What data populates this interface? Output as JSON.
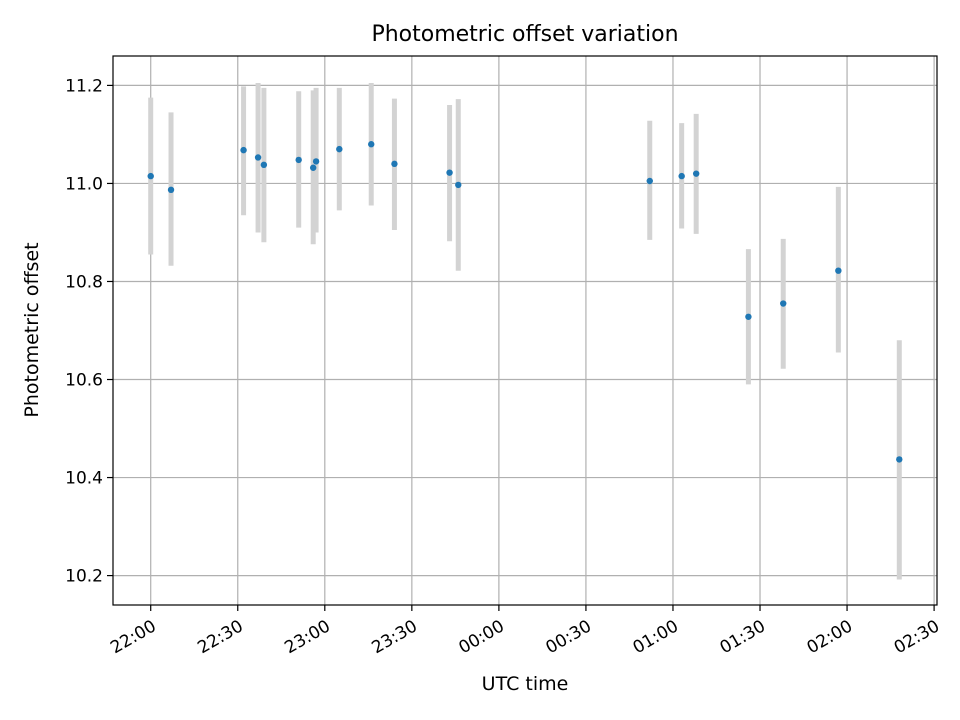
{
  "chart_data": {
    "type": "scatter",
    "title": "Photometric offset variation",
    "xlabel": "UTC time",
    "ylabel": "Photometric offset",
    "x_tick_labels": [
      "22:00",
      "22:30",
      "23:00",
      "23:30",
      "00:00",
      "00:30",
      "01:00",
      "01:30",
      "02:00",
      "02:30"
    ],
    "y_tick_labels": [
      "10.2",
      "10.4",
      "10.6",
      "10.8",
      "11.0",
      "11.2"
    ],
    "y_ticks": [
      10.2,
      10.4,
      10.6,
      10.8,
      11.0,
      11.2
    ],
    "ylim": [
      10.14,
      11.26
    ],
    "xlim": [
      "21:47",
      "02:31"
    ],
    "grid": true,
    "marker_color": "#1f77b4",
    "errorbar_color": "#d3d3d3",
    "points": [
      {
        "time": "22:00",
        "y": 11.015,
        "ylow": 10.855,
        "yhigh": 11.175
      },
      {
        "time": "22:07",
        "y": 10.987,
        "ylow": 10.832,
        "yhigh": 11.145
      },
      {
        "time": "22:32",
        "y": 11.068,
        "ylow": 10.935,
        "yhigh": 11.198
      },
      {
        "time": "22:37",
        "y": 11.053,
        "ylow": 10.9,
        "yhigh": 11.205
      },
      {
        "time": "22:39",
        "y": 11.038,
        "ylow": 10.88,
        "yhigh": 11.195
      },
      {
        "time": "22:51",
        "y": 11.048,
        "ylow": 10.91,
        "yhigh": 11.188
      },
      {
        "time": "22:56",
        "y": 11.032,
        "ylow": 10.876,
        "yhigh": 11.19
      },
      {
        "time": "22:57",
        "y": 11.045,
        "ylow": 10.9,
        "yhigh": 11.195
      },
      {
        "time": "23:05",
        "y": 11.07,
        "ylow": 10.945,
        "yhigh": 11.195
      },
      {
        "time": "23:16",
        "y": 11.08,
        "ylow": 10.955,
        "yhigh": 11.205
      },
      {
        "time": "23:24",
        "y": 11.04,
        "ylow": 10.905,
        "yhigh": 11.173
      },
      {
        "time": "23:43",
        "y": 11.022,
        "ylow": 10.882,
        "yhigh": 11.16
      },
      {
        "time": "23:46",
        "y": 10.997,
        "ylow": 10.822,
        "yhigh": 11.172
      },
      {
        "time": "00:52",
        "y": 11.005,
        "ylow": 10.885,
        "yhigh": 11.128
      },
      {
        "time": "01:03",
        "y": 11.015,
        "ylow": 10.908,
        "yhigh": 11.123
      },
      {
        "time": "01:08",
        "y": 11.02,
        "ylow": 10.897,
        "yhigh": 11.142
      },
      {
        "time": "01:26",
        "y": 10.728,
        "ylow": 10.59,
        "yhigh": 10.866
      },
      {
        "time": "01:38",
        "y": 10.755,
        "ylow": 10.622,
        "yhigh": 10.887
      },
      {
        "time": "01:57",
        "y": 10.822,
        "ylow": 10.655,
        "yhigh": 10.993
      },
      {
        "time": "02:18",
        "y": 10.437,
        "ylow": 10.192,
        "yhigh": 10.68
      }
    ]
  }
}
